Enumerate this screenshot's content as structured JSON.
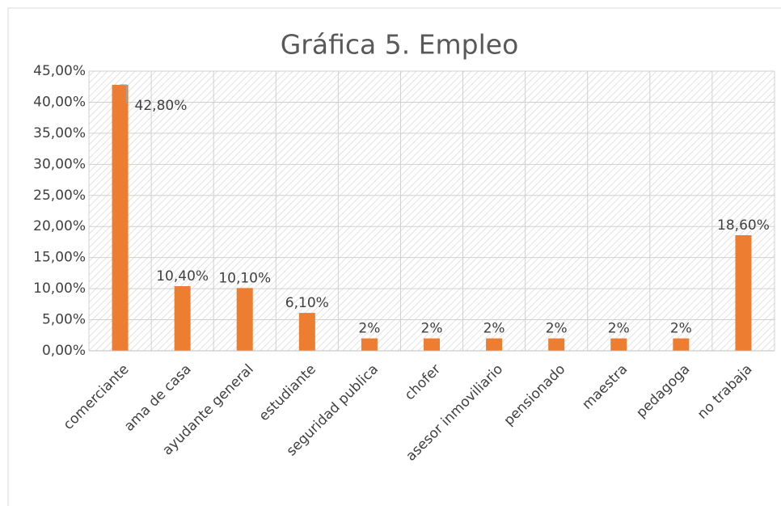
{
  "chart_data": {
    "type": "bar",
    "title": "Gráfica 5. Empleo",
    "categories": [
      "comerciante",
      "ama de casa",
      "ayudante general",
      "estudiante",
      "seguridad publica",
      "chofer",
      "asesor inmoviliario",
      "pensionado",
      "maestra",
      "pedagoga",
      "no trabaja"
    ],
    "values": [
      42.8,
      10.4,
      10.1,
      6.1,
      2,
      2,
      2,
      2,
      2,
      2,
      18.6
    ],
    "value_labels": [
      "42,80%",
      "10,40%",
      "10,10%",
      "6,10%",
      "2%",
      "2%",
      "2%",
      "2%",
      "2%",
      "2%",
      "18,60%"
    ],
    "color": "#ed7d31",
    "ylim": [
      0,
      45
    ],
    "yticks": [
      {
        "value": 0,
        "label": "0,00%"
      },
      {
        "value": 5,
        "label": "5,00%"
      },
      {
        "value": 10,
        "label": "10,00%"
      },
      {
        "value": 15,
        "label": "15,00%"
      },
      {
        "value": 20,
        "label": "20,00%"
      },
      {
        "value": 25,
        "label": "25,00%"
      },
      {
        "value": 30,
        "label": "30,00%"
      },
      {
        "value": 35,
        "label": "35,00%"
      },
      {
        "value": 40,
        "label": "40,00%"
      },
      {
        "value": 45,
        "label": "45,00%"
      }
    ],
    "grid": true
  }
}
